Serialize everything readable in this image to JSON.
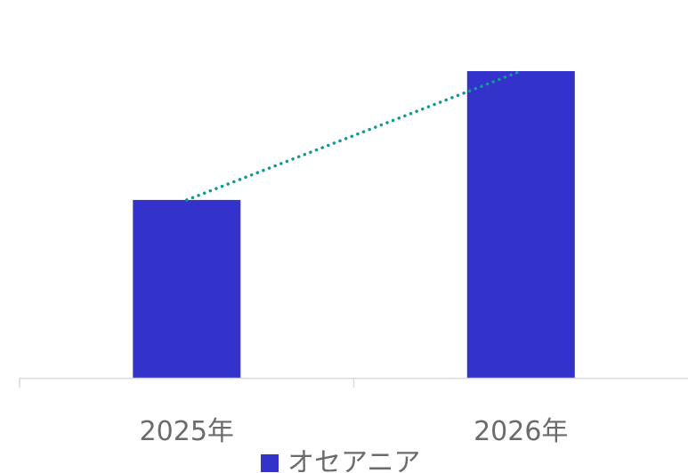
{
  "chart_data": {
    "type": "bar",
    "categories": [
      "2025年",
      "2026年"
    ],
    "series": [
      {
        "name": "オセアニア",
        "values": [
          58,
          100
        ],
        "color": "#3333cc"
      }
    ],
    "trendline": {
      "style": "dotted",
      "color": "#119a93"
    },
    "ylim": [
      0,
      100
    ],
    "grid": false,
    "legend": {
      "position": "bottom"
    },
    "axis_color": "#d9d9d9"
  }
}
